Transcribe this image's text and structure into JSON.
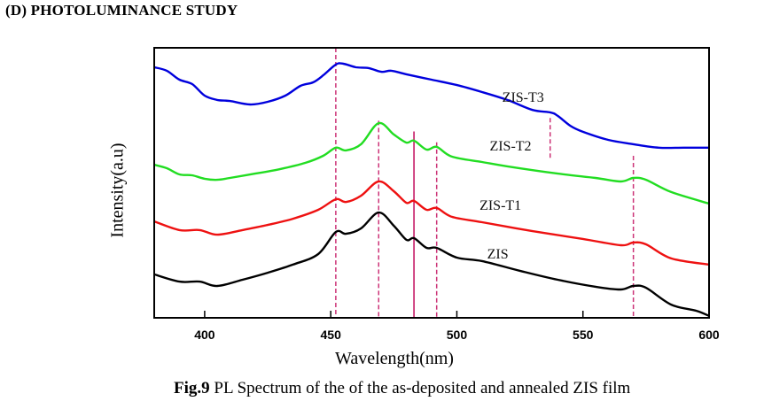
{
  "section_heading": "(D)  PHOTOLUMINANCE STUDY",
  "caption": {
    "prefix": "Fig.9",
    "text": " PL Spectrum of the of the as-deposited  and annealed ZIS film"
  },
  "chart_data": {
    "type": "line",
    "title": "",
    "xlabel": "Wavelength(nm)",
    "ylabel": "Intensity(a.u)",
    "xlim": [
      380,
      600
    ],
    "ylim": [
      0,
      100
    ],
    "x_ticks": [
      400,
      450,
      500,
      550,
      600
    ],
    "y_ticks": [],
    "grid": false,
    "legend": "inline labels",
    "series": [
      {
        "name": "ZIS-T3",
        "color": "#0000dd",
        "points": [
          [
            380,
            92.8
          ],
          [
            385,
            91.5
          ],
          [
            390,
            88.2
          ],
          [
            395,
            86.6
          ],
          [
            400,
            82.3
          ],
          [
            405,
            80.7
          ],
          [
            410,
            80.3
          ],
          [
            418,
            79.0
          ],
          [
            425,
            80.0
          ],
          [
            432,
            82.3
          ],
          [
            438,
            85.9
          ],
          [
            443,
            87.2
          ],
          [
            447,
            89.8
          ],
          [
            452,
            93.8
          ],
          [
            455,
            94.1
          ],
          [
            460,
            92.8
          ],
          [
            465,
            92.5
          ],
          [
            470,
            91.1
          ],
          [
            474,
            91.5
          ],
          [
            480,
            90.2
          ],
          [
            490,
            88.2
          ],
          [
            500,
            86.2
          ],
          [
            510,
            83.6
          ],
          [
            520,
            80.7
          ],
          [
            530,
            77.0
          ],
          [
            537,
            76.1
          ],
          [
            540,
            74.8
          ],
          [
            545,
            71.1
          ],
          [
            550,
            68.9
          ],
          [
            560,
            65.9
          ],
          [
            570,
            64.3
          ],
          [
            580,
            63.0
          ],
          [
            590,
            63.0
          ],
          [
            600,
            63.0
          ]
        ]
      },
      {
        "name": "ZIS-T2",
        "color": "#22dd22",
        "points": [
          [
            380,
            56.7
          ],
          [
            385,
            55.4
          ],
          [
            390,
            53.1
          ],
          [
            395,
            52.8
          ],
          [
            400,
            51.5
          ],
          [
            405,
            51.1
          ],
          [
            410,
            51.8
          ],
          [
            420,
            53.4
          ],
          [
            430,
            55.1
          ],
          [
            440,
            57.4
          ],
          [
            447,
            60.0
          ],
          [
            452,
            63.0
          ],
          [
            456,
            62.0
          ],
          [
            462,
            64.3
          ],
          [
            469,
            72.1
          ],
          [
            475,
            67.9
          ],
          [
            480,
            64.9
          ],
          [
            483,
            65.6
          ],
          [
            488,
            62.3
          ],
          [
            492,
            63.3
          ],
          [
            498,
            59.7
          ],
          [
            510,
            57.7
          ],
          [
            520,
            56.1
          ],
          [
            540,
            53.4
          ],
          [
            555,
            51.8
          ],
          [
            565,
            50.5
          ],
          [
            570,
            51.8
          ],
          [
            575,
            51.1
          ],
          [
            585,
            46.6
          ],
          [
            600,
            42.3
          ]
        ]
      },
      {
        "name": "ZIS-T1",
        "color": "#ee1111",
        "points": [
          [
            380,
            35.7
          ],
          [
            390,
            32.5
          ],
          [
            398,
            32.5
          ],
          [
            405,
            30.8
          ],
          [
            415,
            32.5
          ],
          [
            425,
            34.4
          ],
          [
            435,
            36.7
          ],
          [
            445,
            40.0
          ],
          [
            452,
            43.9
          ],
          [
            456,
            42.9
          ],
          [
            462,
            45.2
          ],
          [
            469,
            50.5
          ],
          [
            475,
            46.9
          ],
          [
            480,
            42.6
          ],
          [
            483,
            43.3
          ],
          [
            488,
            40.0
          ],
          [
            492,
            40.7
          ],
          [
            498,
            37.4
          ],
          [
            510,
            35.4
          ],
          [
            530,
            32.1
          ],
          [
            550,
            29.2
          ],
          [
            565,
            26.9
          ],
          [
            570,
            27.9
          ],
          [
            575,
            27.2
          ],
          [
            585,
            22.0
          ],
          [
            600,
            19.7
          ]
        ]
      },
      {
        "name": "ZIS",
        "color": "#000000",
        "points": [
          [
            380,
            16.1
          ],
          [
            390,
            13.4
          ],
          [
            398,
            13.4
          ],
          [
            405,
            11.8
          ],
          [
            415,
            14.1
          ],
          [
            425,
            16.7
          ],
          [
            435,
            19.7
          ],
          [
            445,
            23.6
          ],
          [
            452,
            31.8
          ],
          [
            456,
            31.1
          ],
          [
            462,
            33.1
          ],
          [
            469,
            39.0
          ],
          [
            475,
            34.1
          ],
          [
            480,
            28.9
          ],
          [
            483,
            29.5
          ],
          [
            488,
            25.9
          ],
          [
            492,
            25.9
          ],
          [
            500,
            22.3
          ],
          [
            510,
            21.0
          ],
          [
            525,
            17.4
          ],
          [
            540,
            14.1
          ],
          [
            555,
            11.5
          ],
          [
            565,
            10.5
          ],
          [
            570,
            11.8
          ],
          [
            575,
            11.1
          ],
          [
            585,
            4.9
          ],
          [
            595,
            2.6
          ],
          [
            600,
            0.7
          ]
        ]
      }
    ],
    "reference_lines": [
      {
        "x": 452,
        "style": "dashed",
        "y_range": [
          0,
          100
        ]
      },
      {
        "x": 469,
        "style": "dashed",
        "y_range": [
          0,
          73
        ]
      },
      {
        "x": 483,
        "style": "solid",
        "y_range": [
          0,
          69
        ]
      },
      {
        "x": 492,
        "style": "dashed",
        "y_range": [
          0,
          65
        ]
      },
      {
        "x": 537,
        "style": "dashed",
        "y_range": [
          59,
          74
        ]
      },
      {
        "x": 570,
        "style": "dashed",
        "y_range": [
          0,
          60
        ]
      }
    ],
    "reference_line_color": "#cc3377",
    "annotations": [
      {
        "text": "ZIS-T3",
        "series": "ZIS-T3",
        "x": 518,
        "y": 80
      },
      {
        "text": "ZIS-T2",
        "series": "ZIS-T2",
        "x": 513,
        "y": 62
      },
      {
        "text": "ZIS-T1",
        "series": "ZIS-T1",
        "x": 509,
        "y": 40
      },
      {
        "text": "ZIS",
        "series": "ZIS",
        "x": 512,
        "y": 22
      }
    ]
  }
}
